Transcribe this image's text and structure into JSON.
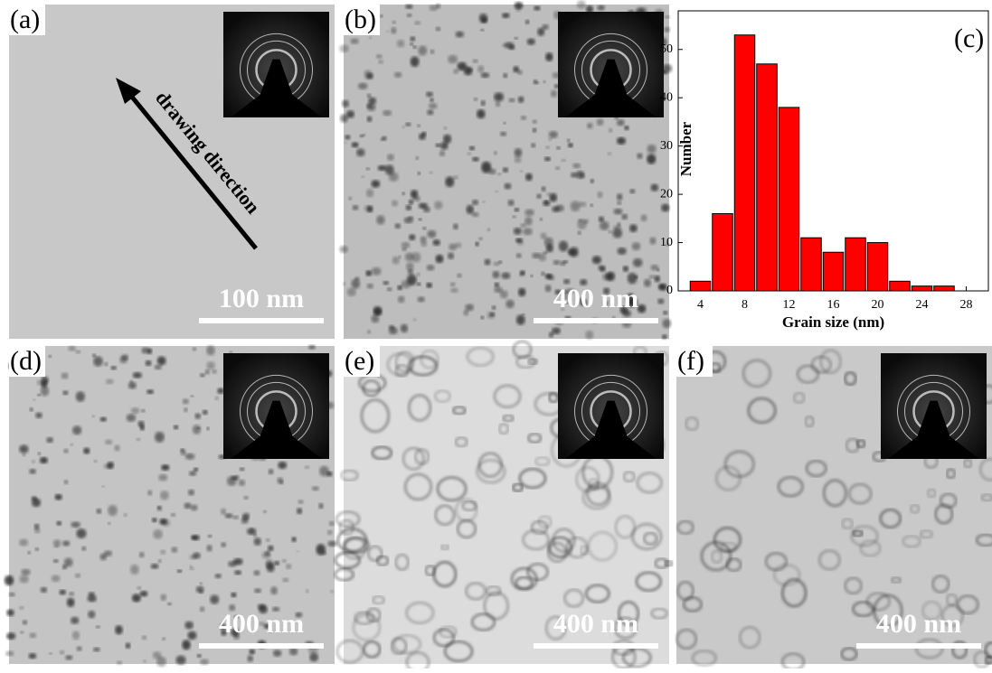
{
  "panels": [
    {
      "label": "(a)",
      "scale_bar": "100 nm",
      "annotation": "drawing direction"
    },
    {
      "label": "(b)",
      "scale_bar": "400 nm"
    },
    {
      "label": "(c)"
    },
    {
      "label": "(d)",
      "scale_bar": "400 nm"
    },
    {
      "label": "(e)",
      "scale_bar": "400 nm"
    },
    {
      "label": "(f)",
      "scale_bar": "400 nm"
    }
  ],
  "chart_data": {
    "type": "histogram",
    "xlabel": "Grain size (nm)",
    "ylabel": "Number",
    "bins": [
      3,
      5,
      7,
      9,
      11,
      13,
      15,
      17,
      19,
      21,
      23,
      25,
      27
    ],
    "values": [
      2,
      16,
      53,
      47,
      38,
      11,
      8,
      11,
      10,
      2,
      1,
      1
    ],
    "color": "#ff0000",
    "xlim": [
      2,
      30
    ],
    "xticks": [
      4,
      8,
      12,
      16,
      20,
      24,
      28
    ],
    "ylim": [
      0,
      58
    ],
    "yticks": [
      0,
      10,
      20,
      30,
      40,
      50
    ]
  }
}
